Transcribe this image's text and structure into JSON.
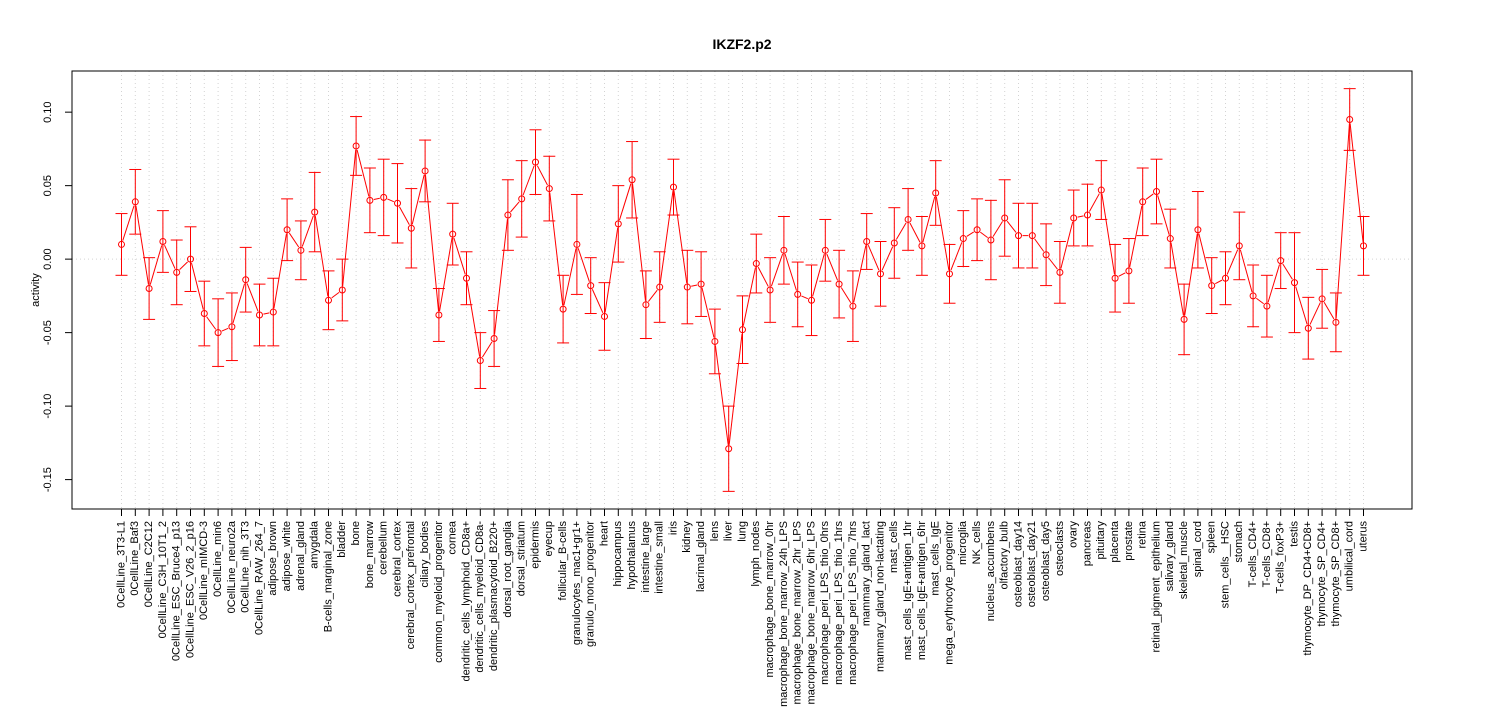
{
  "chart_data": {
    "type": "line",
    "title": "IKZF2.p2",
    "xlabel": "",
    "ylabel": "activity",
    "ylim": [
      -0.17,
      0.128
    ],
    "yticks": [
      -0.15,
      -0.1,
      -0.05,
      0.0,
      0.05,
      0.1
    ],
    "ytick_labels": [
      "-0.15",
      "-0.10",
      "-0.05",
      "0.00",
      "0.05",
      "0.10"
    ],
    "grid": true,
    "colors": {
      "series": "#ff0000",
      "grid": "#d3d3d3",
      "frame": "#000000"
    },
    "categories": [
      "0CellLine_3T3-L1",
      "0CellLine_Baf3",
      "0CellLine_C2C12",
      "0CellLine_C3H_10T1_2",
      "0CellLine_ESC_Bruce4_p13",
      "0CellLine_ESC_V26_2_p16",
      "0CellLine_mIMCD-3",
      "0CellLine_min6",
      "0CellLine_neuro2a",
      "0CellLine_nih_3T3",
      "0CellLine_RAW_264_7",
      "adipose_brown",
      "adipose_white",
      "adrenal_gland",
      "amygdala",
      "B-cells_marginal_zone",
      "bladder",
      "bone",
      "bone_marrow",
      "cerebellum",
      "cerebral_cortex",
      "cerebral_cortex_prefrontal",
      "ciliary_bodies",
      "common_myeloid_progenitor",
      "cornea",
      "dendritic_cells_lymphoid_CD8a+",
      "dendritic_cells_myeloid_CD8a-",
      "dendritic_plasmacytoid_B220+",
      "dorsal_root_ganglia",
      "dorsal_striatum",
      "epidermis",
      "eyecup",
      "follicular_B-cells",
      "granulocytes_mac1+gr1+",
      "granulo_mono_progenitor",
      "heart",
      "hippocampus",
      "hypothalamus",
      "intestine_large",
      "intestine_small",
      "iris",
      "kidney",
      "lacrimal_gland",
      "lens",
      "liver",
      "lung",
      "lymph_nodes",
      "macrophage_bone_marrow_0hr",
      "macrophage_bone_marrow_24h_LPS",
      "macrophage_bone_marrow_2hr_LPS",
      "macrophage_bone_marrow_6hr_LPS",
      "macrophage_peri_LPS_thio_0hrs",
      "macrophage_peri_LPS_thio_1hrs",
      "macrophage_peri_LPS_thio_7hrs",
      "mammary_gland_lact",
      "mammary_gland_non-lactating",
      "mast_cells",
      "mast_cells_IgE+antigen_1hr",
      "mast_cells_IgE+antigen_6hr",
      "mast_cells_IgE",
      "mega_erythrocyte_progenitor",
      "microglia",
      "NK_cells",
      "nucleus_accumbens",
      "olfactory_bulb",
      "osteoblast_day14",
      "osteoblast_day21",
      "osteoblast_day5",
      "osteoclasts",
      "ovary",
      "pancreas",
      "pituitary",
      "placenta",
      "prostate",
      "retina",
      "retinal_pigment_epithelium",
      "salivary_gland",
      "skeletal_muscle",
      "spinal_cord",
      "spleen",
      "stem_cells__HSC",
      "stomach",
      "T-cells_CD4+",
      "T-cells_CD8+",
      "T-cells_foxP3+",
      "testis",
      "thymocyte_DP_CD4+CD8+",
      "thymocyte_SP_CD4+",
      "thymocyte_SP_CD8+",
      "umbilical_cord",
      "uterus"
    ],
    "values": [
      0.01,
      0.039,
      -0.02,
      0.012,
      -0.009,
      0.0,
      -0.037,
      -0.05,
      -0.046,
      -0.014,
      -0.038,
      -0.036,
      0.02,
      0.006,
      0.032,
      -0.028,
      -0.021,
      0.077,
      0.04,
      0.042,
      0.038,
      0.021,
      0.06,
      -0.038,
      0.017,
      -0.013,
      -0.069,
      -0.054,
      0.03,
      0.041,
      0.066,
      0.048,
      -0.034,
      0.01,
      -0.018,
      -0.039,
      0.024,
      0.054,
      -0.031,
      -0.019,
      0.049,
      -0.019,
      -0.017,
      -0.056,
      -0.129,
      -0.048,
      -0.003,
      -0.021,
      0.006,
      -0.024,
      -0.028,
      0.006,
      -0.017,
      -0.032,
      0.012,
      -0.01,
      0.011,
      0.027,
      0.009,
      0.045,
      -0.01,
      0.014,
      0.02,
      0.013,
      0.028,
      0.016,
      0.016,
      0.003,
      -0.009,
      0.028,
      0.03,
      0.047,
      -0.013,
      -0.008,
      0.039,
      0.046,
      0.014,
      -0.041,
      0.02,
      -0.018,
      -0.013,
      0.009,
      -0.025,
      -0.032,
      -0.001,
      -0.016,
      -0.047,
      -0.027,
      -0.043,
      0.095,
      0.009
    ],
    "error": [
      0.021,
      0.022,
      0.021,
      0.021,
      0.022,
      0.022,
      0.022,
      0.023,
      0.023,
      0.022,
      0.021,
      0.023,
      0.021,
      0.02,
      0.027,
      0.02,
      0.021,
      0.02,
      0.022,
      0.026,
      0.027,
      0.027,
      0.021,
      0.018,
      0.021,
      0.018,
      0.019,
      0.019,
      0.024,
      0.026,
      0.022,
      0.022,
      0.023,
      0.034,
      0.019,
      0.023,
      0.026,
      0.026,
      0.023,
      0.024,
      0.019,
      0.025,
      0.022,
      0.022,
      0.029,
      0.023,
      0.02,
      0.022,
      0.023,
      0.022,
      0.024,
      0.021,
      0.023,
      0.024,
      0.019,
      0.022,
      0.024,
      0.021,
      0.02,
      0.022,
      0.02,
      0.019,
      0.021,
      0.027,
      0.026,
      0.022,
      0.022,
      0.021,
      0.021,
      0.019,
      0.021,
      0.02,
      0.023,
      0.022,
      0.023,
      0.022,
      0.02,
      0.024,
      0.026,
      0.019,
      0.018,
      0.023,
      0.021,
      0.021,
      0.019,
      0.034,
      0.021,
      0.02,
      0.02,
      0.021,
      0.02
    ]
  }
}
